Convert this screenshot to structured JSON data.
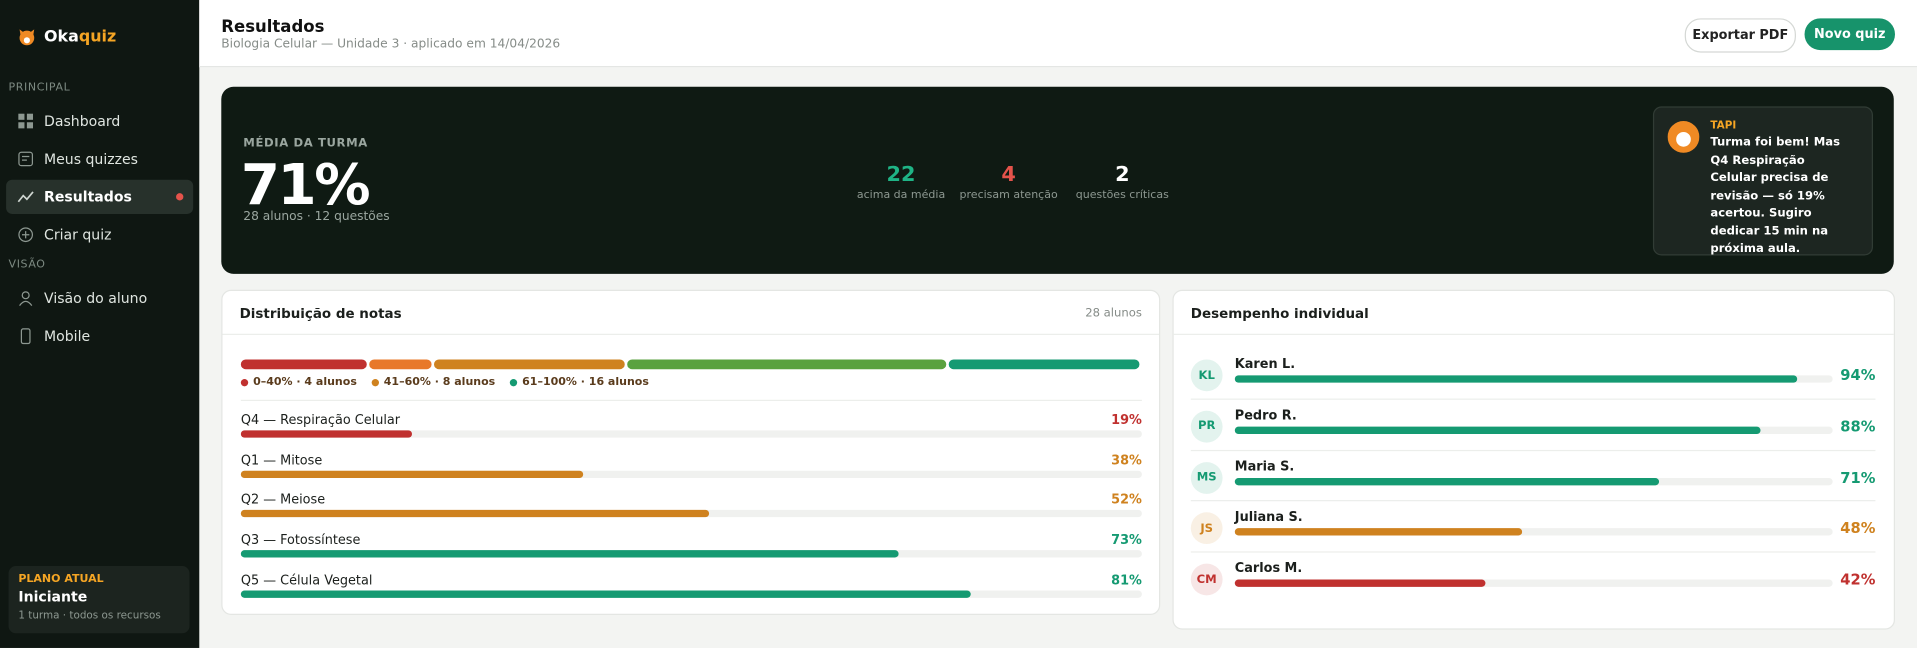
{
  "sidebar": {
    "brand": {
      "part1": "Oka",
      "part2": "quiz"
    },
    "sections": [
      {
        "label": "PRINCIPAL",
        "items": [
          {
            "label": "Dashboard"
          },
          {
            "label": "Meus quizzes"
          },
          {
            "label": "Resultados",
            "active": true
          },
          {
            "label": "Criar quiz"
          }
        ]
      },
      {
        "label": "VISÃO",
        "items": [
          {
            "label": "Visão do aluno"
          },
          {
            "label": "Mobile"
          }
        ]
      }
    ],
    "plan": {
      "label": "PLANO ATUAL",
      "name": "Iniciante",
      "detail": "1 turma · todos os recursos"
    }
  },
  "header": {
    "title": "Resultados",
    "subtitle": "Biologia Celular — Unidade 3 · aplicado em 14/04/2026",
    "buttons": [
      "Exportar PDF",
      "Novo quiz"
    ]
  },
  "hero": {
    "label": "MÉDIA DA TURMA",
    "value": "71%",
    "detail": "28 alunos · 12 questões",
    "stats": [
      {
        "value": "22",
        "label": "acima da média",
        "color": "#1fb486"
      },
      {
        "value": "4",
        "label": "precisam atenção",
        "color": "#e5534b"
      },
      {
        "value": "2",
        "label": "questões críticas",
        "color": "#ffffff"
      }
    ],
    "tip": {
      "name": "TAPI",
      "text": "Turma foi bem! Mas Q4 Respiração Celular precisa de revisão — só 19% acertou. Sugiro dedicar 15 min na próxima aula."
    }
  },
  "distribution": {
    "title": "Distribuição de notas",
    "count": "28 alunos",
    "segments": [
      {
        "count": 4,
        "color": "#c0312f"
      },
      {
        "count": 2,
        "color": "#e8782a"
      },
      {
        "count": 6,
        "color": "#cf821f"
      },
      {
        "count": 10,
        "color": "#5aa23f"
      },
      {
        "count": 6,
        "color": "#159a72"
      }
    ],
    "legend": [
      {
        "label": "0–40% · 4 alunos",
        "color": "#c0312f"
      },
      {
        "label": "41–60% · 8 alunos",
        "color": "#cf821f"
      },
      {
        "label": "61–100% · 16 alunos",
        "color": "#159a72"
      }
    ],
    "questions": [
      {
        "label": "Q4 — Respiração Celular",
        "value": 19,
        "value_label": "19%",
        "color": "#c0312f"
      },
      {
        "label": "Q1 — Mitose",
        "value": 38,
        "value_label": "38%",
        "color": "#cf821f"
      },
      {
        "label": "Q2 — Meiose",
        "value": 52,
        "value_label": "52%",
        "color": "#cf821f"
      },
      {
        "label": "Q3 — Fotossíntese",
        "value": 73,
        "value_label": "73%",
        "color": "#159a72"
      },
      {
        "label": "Q5 — Célula Vegetal",
        "value": 81,
        "value_label": "81%",
        "color": "#159a72"
      }
    ]
  },
  "individual": {
    "title": "Desempenho individual",
    "students": [
      {
        "initials": "KL",
        "name": "Karen L.",
        "value": 94,
        "value_label": "94%",
        "color": "#159a72"
      },
      {
        "initials": "PR",
        "name": "Pedro R.",
        "value": 88,
        "value_label": "88%",
        "color": "#159a72"
      },
      {
        "initials": "MS",
        "name": "Maria S.",
        "value": 71,
        "value_label": "71%",
        "color": "#159a72"
      },
      {
        "initials": "JS",
        "name": "Juliana S.",
        "value": 48,
        "value_label": "48%",
        "color": "#cf821f"
      },
      {
        "initials": "CM",
        "name": "Carlos M.",
        "value": 42,
        "value_label": "42%",
        "color": "#c0312f"
      }
    ]
  }
}
